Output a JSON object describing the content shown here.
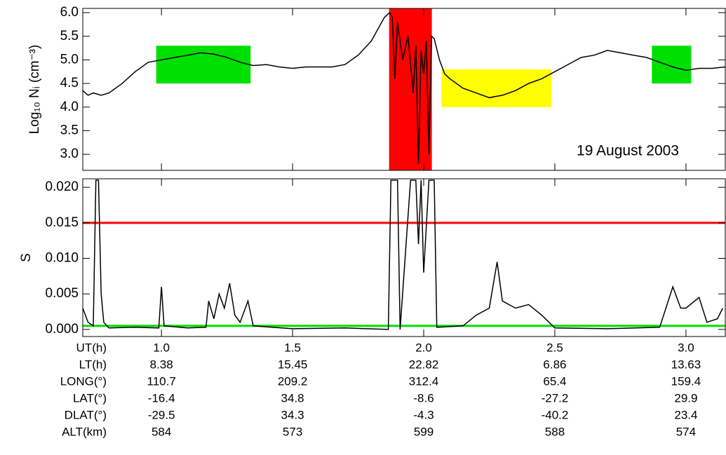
{
  "chart_data": [
    {
      "type": "line",
      "ylabel": "Log₁₀ Nᵢ (cm⁻³)",
      "annotation": "19 August 2003",
      "xlim": [
        0.7,
        3.15
      ],
      "ylim": [
        2.66,
        6.09
      ],
      "xticks": [
        1,
        1.5,
        2,
        2.5,
        3
      ],
      "yticks": [
        {
          "value": 3,
          "label": "3.0"
        },
        3.5,
        {
          "value": 4,
          "label": "4.0"
        },
        4.5,
        {
          "value": 5,
          "label": "5.0"
        },
        5.5,
        {
          "value": 6,
          "label": "6.0"
        }
      ],
      "regions": [
        {
          "color": "#00e000",
          "x": [
            0.98,
            1.34
          ],
          "y": [
            4.5,
            5.3
          ]
        },
        {
          "color": "#ff0000",
          "x": [
            1.868,
            2.031
          ],
          "y": [
            2.66,
            6.09
          ]
        },
        {
          "color": "#ffff00",
          "x": [
            2.068,
            2.487
          ],
          "y": [
            4.0,
            4.8
          ]
        },
        {
          "color": "#00e000",
          "x": [
            2.87,
            3.02
          ],
          "y": [
            4.5,
            5.3
          ]
        }
      ],
      "x": [
        0.7,
        0.72,
        0.74,
        0.77,
        0.8,
        0.85,
        0.9,
        0.95,
        1.0,
        1.05,
        1.1,
        1.15,
        1.2,
        1.25,
        1.3,
        1.35,
        1.4,
        1.45,
        1.5,
        1.55,
        1.6,
        1.65,
        1.7,
        1.75,
        1.8,
        1.85,
        1.87,
        1.88,
        1.89,
        1.9,
        1.92,
        1.94,
        1.96,
        1.97,
        1.98,
        1.99,
        2.0,
        2.01,
        2.02,
        2.03,
        2.04,
        2.06,
        2.08,
        2.1,
        2.15,
        2.2,
        2.25,
        2.3,
        2.35,
        2.4,
        2.45,
        2.5,
        2.55,
        2.6,
        2.65,
        2.7,
        2.75,
        2.8,
        2.85,
        2.9,
        2.95,
        3.0,
        3.05,
        3.1,
        3.15
      ],
      "series": [
        {
          "name": "Ni",
          "color": "#000000",
          "values": [
            4.35,
            4.25,
            4.3,
            4.25,
            4.3,
            4.5,
            4.75,
            4.95,
            5.0,
            5.05,
            5.1,
            5.15,
            5.12,
            5.05,
            4.95,
            4.88,
            4.9,
            4.85,
            4.82,
            4.85,
            4.85,
            4.85,
            4.9,
            5.1,
            5.4,
            5.9,
            6.0,
            5.9,
            4.6,
            5.8,
            5.0,
            5.5,
            4.3,
            5.3,
            2.8,
            5.2,
            4.7,
            5.4,
            3.0,
            5.5,
            5.45,
            5.0,
            4.7,
            4.6,
            4.4,
            4.3,
            4.2,
            4.25,
            4.35,
            4.5,
            4.6,
            4.75,
            4.9,
            5.05,
            5.1,
            5.2,
            5.15,
            5.1,
            5.05,
            4.95,
            4.85,
            4.78,
            4.82,
            4.82,
            4.85
          ]
        }
      ]
    },
    {
      "type": "line",
      "ylabel": "S",
      "xlabel": "UT(h)",
      "xlim": [
        0.7,
        3.15
      ],
      "ylim": [
        -0.001,
        0.0212
      ],
      "xticks": [
        {
          "value": 1,
          "label": "1.0"
        },
        1.5,
        {
          "value": 2,
          "label": "2.0"
        },
        2.5,
        {
          "value": 3,
          "label": "3.0"
        }
      ],
      "yticks": [
        {
          "value": 0,
          "label": "0.000"
        },
        {
          "value": 0.005,
          "label": "0.005"
        },
        {
          "value": 0.01,
          "label": "0.010"
        },
        {
          "value": 0.015,
          "label": "0.015"
        },
        {
          "value": 0.02,
          "label": "0.020"
        }
      ],
      "thresholds": [
        {
          "value": 0.015,
          "color": "#ff0000"
        },
        {
          "value": 0.0005,
          "color": "#00e000"
        }
      ],
      "x": [
        0.7,
        0.72,
        0.74,
        0.75,
        0.76,
        0.77,
        0.78,
        0.8,
        0.9,
        0.99,
        1.0,
        1.01,
        1.1,
        1.17,
        1.18,
        1.2,
        1.22,
        1.24,
        1.26,
        1.28,
        1.3,
        1.33,
        1.35,
        1.5,
        1.7,
        1.865,
        1.875,
        1.9,
        1.91,
        1.95,
        1.97,
        1.98,
        1.99,
        2.0,
        2.02,
        2.04,
        2.05,
        2.15,
        2.2,
        2.25,
        2.28,
        2.3,
        2.35,
        2.4,
        2.45,
        2.5,
        2.7,
        2.9,
        2.95,
        2.98,
        3.0,
        3.05,
        3.08,
        3.12,
        3.14
      ],
      "series": [
        {
          "name": "S",
          "color": "#000000",
          "values": [
            0.003,
            0.001,
            0.0005,
            0.021,
            0.021,
            0.005,
            0.001,
            0.0002,
            0.0003,
            0.0002,
            0.006,
            0.0005,
            0.0002,
            0.0003,
            0.004,
            0.0015,
            0.005,
            0.003,
            0.0065,
            0.002,
            0.001,
            0.004,
            0.0005,
            0.0001,
            0.0002,
            0.0,
            0.021,
            0.021,
            0.0,
            0.021,
            0.021,
            0.012,
            0.021,
            0.008,
            0.021,
            0.021,
            0.0003,
            0.0005,
            0.002,
            0.003,
            0.0095,
            0.004,
            0.003,
            0.0035,
            0.002,
            0.0002,
            0.0001,
            0.0003,
            0.006,
            0.003,
            0.003,
            0.0045,
            0.001,
            0.0015,
            0.003
          ]
        }
      ],
      "aux_rows": [
        {
          "label": "LT(h)",
          "values": [
            8.38,
            15.45,
            22.82,
            6.86,
            13.63
          ]
        },
        {
          "label": "LONG(°)",
          "values": [
            110.7,
            209.2,
            312.4,
            65.4,
            159.4
          ]
        },
        {
          "label": "LAT(°)",
          "values": [
            -16.4,
            34.8,
            -8.6,
            -27.2,
            29.9
          ]
        },
        {
          "label": "DLAT(°)",
          "values": [
            -29.5,
            34.3,
            -4.3,
            -40.2,
            23.4
          ]
        },
        {
          "label": "ALT(km)",
          "values": [
            584,
            573,
            599,
            588,
            574
          ]
        }
      ]
    }
  ]
}
